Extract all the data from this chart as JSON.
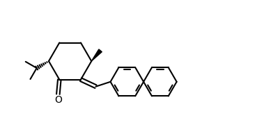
{
  "background_color": "#ffffff",
  "line_color": "#000000",
  "line_width": 1.5,
  "figsize": [
    3.89,
    1.93
  ],
  "dpi": 100,
  "xlim": [
    0,
    10
  ],
  "ylim": [
    0,
    5
  ]
}
